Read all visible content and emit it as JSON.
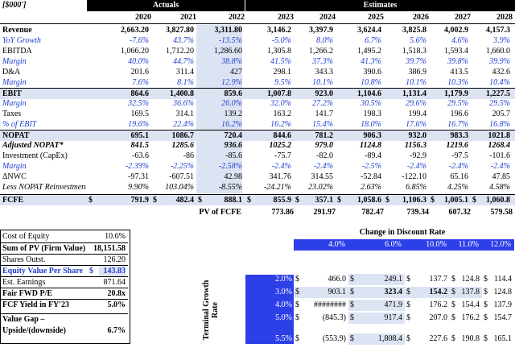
{
  "header": {
    "unit": "[$000']",
    "actuals": "Actuals",
    "estimates": "Estimates"
  },
  "years": [
    "2020",
    "2021",
    "2022",
    "2023",
    "2024",
    "2025",
    "2026",
    "2027",
    "2028"
  ],
  "rows": [
    {
      "label": "Revenue",
      "values": [
        "2,663.20",
        "3,827.80",
        "3,311.80",
        "3,146.2",
        "3,397.9",
        "3,624.4",
        "3,825.8",
        "4,002.9",
        "4,157.3"
      ]
    },
    {
      "label": "YoY Growth",
      "values": [
        "-7.6%",
        "43.7%",
        "-13.5%",
        "-5.0%",
        "8.0%",
        "6.7%",
        "5.6%",
        "4.6%",
        "3.9%"
      ]
    },
    {
      "label": "EBITDA",
      "values": [
        "1,066.20",
        "1,712.20",
        "1,286.60",
        "1,305.8",
        "1,266.2",
        "1,495.2",
        "1,518.3",
        "1,593.4",
        "1,660.0"
      ]
    },
    {
      "label": "Margin",
      "values": [
        "40.0%",
        "44.7%",
        "38.8%",
        "41.5%",
        "37.3%",
        "41.3%",
        "39.7%",
        "39.8%",
        "39.9%"
      ]
    },
    {
      "label": "D&A",
      "values": [
        "201.6",
        "311.4",
        "427",
        "298.1",
        "343.3",
        "390.6",
        "386.9",
        "413.5",
        "432.6"
      ]
    },
    {
      "label": "Margin",
      "values": [
        "7.6%",
        "8.1%",
        "12.9%",
        "9.5%",
        "10.1%",
        "10.8%",
        "10.1%",
        "10.3%",
        "10.4%"
      ]
    },
    {
      "label": "EBIT",
      "values": [
        "864.6",
        "1,400.8",
        "859.6",
        "1,007.8",
        "923.0",
        "1,104.6",
        "1,131.4",
        "1,179.9",
        "1,227.5"
      ]
    },
    {
      "label": "Margin",
      "values": [
        "32.5%",
        "36.6%",
        "26.0%",
        "32.0%",
        "27.2%",
        "30.5%",
        "29.6%",
        "29.5%",
        "29.5%"
      ]
    },
    {
      "label": "Taxes",
      "values": [
        "169.5",
        "314.1",
        "139.2",
        "163.2",
        "141.7",
        "198.3",
        "199.4",
        "196.6",
        "205.7"
      ]
    },
    {
      "label": "% of EBIT",
      "values": [
        "19.6%",
        "22.4%",
        "16.2%",
        "16.2%",
        "15.4%",
        "18.0%",
        "17.6%",
        "16.7%",
        "16.8%"
      ]
    },
    {
      "label": "NOPAT",
      "values": [
        "695.1",
        "1086.7",
        "720.4",
        "844.6",
        "781.2",
        "906.3",
        "932.0",
        "983.3",
        "1021.8"
      ]
    },
    {
      "label": "Adjusted NOPAT*",
      "values": [
        "841.5",
        "1285.6",
        "936.6",
        "1025.2",
        "979.0",
        "1124.8",
        "1156.3",
        "1219.6",
        "1268.4"
      ]
    },
    {
      "label": "Investment (CapEx)",
      "values": [
        "-63.6",
        "-86",
        "-85.6",
        "-75.7",
        "-82.0",
        "-89.4",
        "-92.9",
        "-97.5",
        "-101.6"
      ]
    },
    {
      "label": "Margin",
      "values": [
        "-2.39%",
        "-2.25%",
        "-2.58%",
        "-2.4%",
        "-2.4%",
        "-2.5%",
        "-2.4%",
        "-2.4%",
        "-2.4%"
      ]
    },
    {
      "label": "ΔNWC",
      "values": [
        "-97.31",
        "-607.51",
        "42.98",
        "341.76",
        "314.55",
        "-52.84",
        "-122.10",
        "65.16",
        "47.85"
      ]
    },
    {
      "label": "Less NOPAT Reinvestment",
      "values": [
        "9.90%",
        "103.04%",
        "-8.55%",
        "-24.21%",
        "23.02%",
        "2.63%",
        "6.85%",
        "4.25%",
        "4.58%"
      ]
    },
    {
      "label": "FCFE",
      "values": [
        "791.9",
        "482.4",
        "888.1",
        "855.9",
        "357.1",
        "1,058.6",
        "1,106.3",
        "1,005.1",
        "1,060.8"
      ]
    }
  ],
  "pv": {
    "label": "PV of FCFE",
    "values": [
      "773.86",
      "291.97",
      "782.47",
      "739.34",
      "607.32",
      "579.58"
    ]
  },
  "summary": [
    {
      "label": "Cost of Equity",
      "value": "10.6%"
    },
    {
      "label": "Sum of PV (Firm Value)",
      "value": "18,151.58"
    },
    {
      "label": "Shares Outst.",
      "value": "126.20"
    },
    {
      "label": "Equity Value Per Share",
      "value": "143.83",
      "currency": "$"
    },
    {
      "label": "Est. Earnings",
      "value": "871.64"
    },
    {
      "label": "Fair FWD P/E",
      "value": "20.8x"
    },
    {
      "label": "FCF Yield in FY'23",
      "value": "5.0%"
    },
    {
      "label": "Value Gap – Upside/(downside)",
      "value": "6.7%"
    }
  ],
  "sensitivity": {
    "title": "Change in Discount Rate",
    "side_label": "Terminal Growth Rate",
    "cols": [
      "4.0%",
      "6.0%",
      "10.0%",
      "11.0%",
      "12.0%"
    ],
    "rows": [
      {
        "g": "2.0%",
        "vals": [
          "466.0",
          "249.1",
          "137.7",
          "124.8",
          "114.4"
        ]
      },
      {
        "g": "3.0%",
        "vals": [
          "903.1",
          "323.4",
          "154.2",
          "137.8",
          "124.8"
        ]
      },
      {
        "g": "4.0%",
        "vals": [
          "########",
          "471.9",
          "176.2",
          "154.4",
          "137.9"
        ]
      },
      {
        "g": "5.0%",
        "vals": [
          "(845.3)",
          "917.4",
          "207.0",
          "176.2",
          "154.7"
        ]
      },
      {
        "g": "5.5%",
        "vals": [
          "(553.9)",
          "1,808.4",
          "227.6",
          "190.8",
          "165.1"
        ]
      }
    ]
  },
  "colors": {
    "accent": "#1f3fcf",
    "shade": "#dce3f3",
    "header": "#000000"
  }
}
